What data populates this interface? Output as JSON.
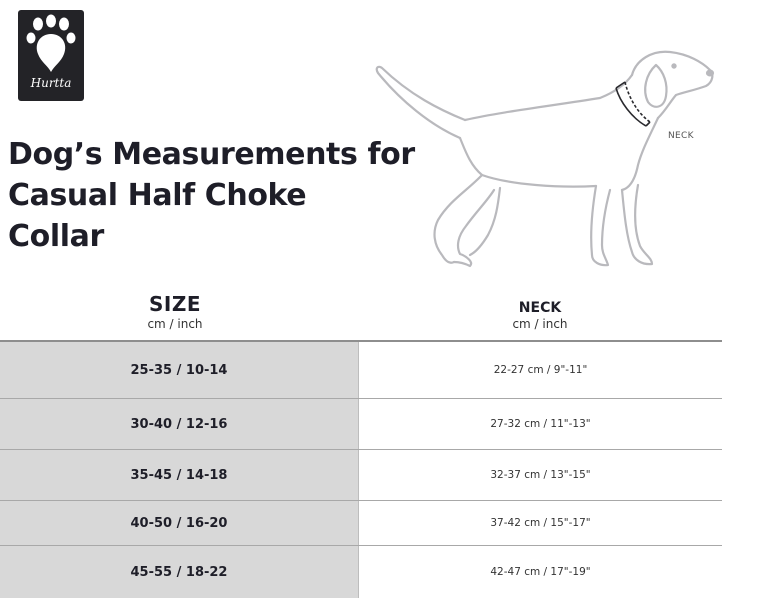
{
  "brand": {
    "name": "Hurtta"
  },
  "title_lines": [
    "Dog’s Measurements for",
    "Casual Half Choke",
    "Collar"
  ],
  "illustration": {
    "neck_label": "NECK"
  },
  "table": {
    "col_size": {
      "title": "SIZE",
      "unit": "cm / inch"
    },
    "col_neck": {
      "title": "NECK",
      "unit": "cm / inch"
    },
    "rows": [
      {
        "size": "25-35 / 10-14",
        "neck": "22-27 cm / 9\"-11\""
      },
      {
        "size": "30-40 / 12-16",
        "neck": "27-32 cm / 11\"-13\""
      },
      {
        "size": "35-45 / 14-18",
        "neck": "32-37 cm / 13\"-15\""
      },
      {
        "size": "40-50 / 16-20",
        "neck": "37-42 cm / 15\"-17\""
      },
      {
        "size": "45-55 / 18-22",
        "neck": "42-47 cm / 17\"-19\""
      }
    ]
  },
  "colors": {
    "logo_bg": "#232327",
    "size_column_bg": "#d8d8d8",
    "text": "#1e1e28"
  }
}
